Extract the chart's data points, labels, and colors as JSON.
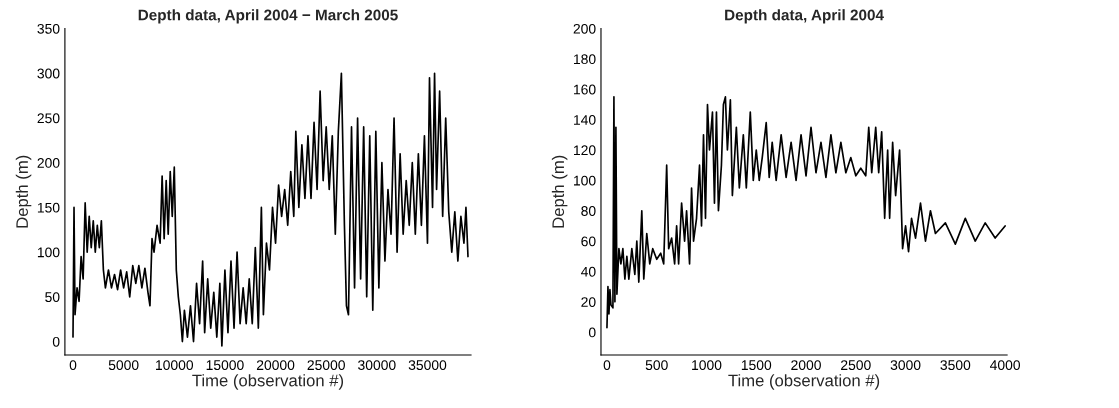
{
  "chart_data": [
    {
      "type": "line",
      "title": "Depth data, April 2004 − March 2005",
      "xlabel": "Time (observation #)",
      "ylabel": "Depth (m)",
      "xlim": [
        -800,
        39300
      ],
      "ylim": [
        -15,
        350
      ],
      "xticks": [
        0,
        5000,
        10000,
        15000,
        20000,
        25000,
        30000,
        35000
      ],
      "yticks": [
        0,
        50,
        100,
        150,
        200,
        250,
        300,
        350
      ],
      "grid": false,
      "legend": false,
      "series": [
        {
          "color": "#000000",
          "x": [
            0,
            100,
            200,
            400,
            600,
            800,
            1000,
            1200,
            1400,
            1600,
            1800,
            2000,
            2200,
            2400,
            2600,
            2800,
            3000,
            3200,
            3500,
            3800,
            4100,
            4400,
            4700,
            5000,
            5300,
            5600,
            5900,
            6200,
            6500,
            6800,
            7100,
            7400,
            7600,
            7800,
            8000,
            8300,
            8600,
            8800,
            9000,
            9200,
            9400,
            9600,
            9800,
            10000,
            10200,
            10400,
            10600,
            10800,
            11000,
            11300,
            11600,
            11900,
            12200,
            12500,
            12800,
            13000,
            13300,
            13600,
            13900,
            14200,
            14500,
            14700,
            15000,
            15300,
            15600,
            15900,
            16200,
            16500,
            16800,
            17100,
            17400,
            17700,
            18000,
            18300,
            18600,
            18800,
            19100,
            19400,
            19700,
            20000,
            20300,
            20600,
            20900,
            21200,
            21500,
            21800,
            22000,
            22300,
            22600,
            22900,
            23200,
            23500,
            23800,
            24100,
            24400,
            24700,
            25000,
            25300,
            25600,
            25900,
            26200,
            26500,
            26800,
            27000,
            27200,
            27500,
            27800,
            28100,
            28400,
            28700,
            29000,
            29300,
            29600,
            29900,
            30200,
            30500,
            30800,
            31100,
            31400,
            31700,
            32000,
            32300,
            32600,
            32900,
            33200,
            33500,
            33800,
            34100,
            34400,
            34700,
            35000,
            35200,
            35500,
            35700,
            35900,
            36200,
            36500,
            36800,
            37100,
            37400,
            37700,
            38000,
            38300,
            38600,
            38800,
            39000
          ],
          "values": [
            5,
            150,
            30,
            60,
            45,
            95,
            70,
            155,
            100,
            140,
            105,
            135,
            100,
            130,
            105,
            135,
            80,
            60,
            80,
            60,
            75,
            58,
            80,
            60,
            78,
            50,
            85,
            65,
            85,
            60,
            82,
            55,
            40,
            115,
            100,
            130,
            110,
            185,
            115,
            180,
            120,
            190,
            140,
            195,
            80,
            50,
            30,
            0,
            35,
            5,
            40,
            0,
            65,
            20,
            90,
            10,
            70,
            15,
            55,
            5,
            65,
            -5,
            80,
            10,
            90,
            15,
            100,
            20,
            60,
            20,
            70,
            20,
            105,
            15,
            150,
            30,
            110,
            80,
            150,
            110,
            175,
            140,
            170,
            130,
            190,
            140,
            235,
            150,
            220,
            160,
            230,
            160,
            245,
            170,
            280,
            180,
            240,
            170,
            230,
            120,
            235,
            300,
            130,
            40,
            30,
            240,
            60,
            250,
            70,
            240,
            50,
            230,
            35,
            235,
            60,
            200,
            90,
            170,
            120,
            250,
            100,
            210,
            120,
            180,
            130,
            200,
            120,
            210,
            130,
            230,
            110,
            295,
            150,
            300,
            170,
            280,
            140,
            250,
            145,
            100,
            145,
            90,
            140,
            110,
            150,
            95
          ]
        }
      ]
    },
    {
      "type": "line",
      "title": "Depth data, April 2004",
      "xlabel": "Time (observation #)",
      "ylabel": "Depth (m)",
      "xlim": [
        -60,
        4020
      ],
      "ylim": [
        -15,
        200
      ],
      "xticks": [
        0,
        500,
        1000,
        1500,
        2000,
        2500,
        3000,
        3500,
        4000
      ],
      "yticks": [
        0,
        20,
        40,
        60,
        80,
        100,
        120,
        140,
        160,
        180,
        200
      ],
      "grid": false,
      "legend": false,
      "series": [
        {
          "color": "#000000",
          "x": [
            0,
            10,
            20,
            30,
            40,
            60,
            70,
            80,
            90,
            100,
            120,
            140,
            160,
            180,
            200,
            220,
            250,
            280,
            300,
            320,
            350,
            370,
            400,
            430,
            460,
            500,
            540,
            570,
            600,
            620,
            650,
            680,
            700,
            720,
            750,
            780,
            800,
            830,
            850,
            870,
            900,
            930,
            950,
            970,
            990,
            1010,
            1030,
            1060,
            1080,
            1100,
            1120,
            1150,
            1170,
            1190,
            1210,
            1240,
            1260,
            1300,
            1330,
            1370,
            1400,
            1440,
            1470,
            1500,
            1530,
            1560,
            1600,
            1630,
            1660,
            1700,
            1750,
            1800,
            1850,
            1900,
            1950,
            2000,
            2050,
            2100,
            2150,
            2200,
            2250,
            2300,
            2350,
            2400,
            2450,
            2500,
            2550,
            2600,
            2630,
            2660,
            2700,
            2730,
            2760,
            2790,
            2820,
            2840,
            2870,
            2900,
            2940,
            2970,
            3000,
            3030,
            3060,
            3100,
            3150,
            3200,
            3250,
            3300,
            3400,
            3500,
            3600,
            3700,
            3800,
            3900,
            4000
          ],
          "values": [
            3,
            30,
            12,
            28,
            18,
            16,
            155,
            20,
            135,
            25,
            55,
            45,
            55,
            35,
            50,
            35,
            55,
            38,
            60,
            33,
            80,
            35,
            65,
            45,
            55,
            48,
            52,
            45,
            110,
            55,
            62,
            45,
            70,
            45,
            85,
            60,
            80,
            45,
            95,
            60,
            75,
            110,
            70,
            130,
            75,
            150,
            120,
            145,
            85,
            145,
            80,
            110,
            150,
            155,
            120,
            153,
            90,
            135,
            95,
            130,
            95,
            145,
            100,
            120,
            100,
            115,
            138,
            102,
            125,
            100,
            130,
            102,
            125,
            100,
            130,
            103,
            135,
            105,
            125,
            102,
            130,
            105,
            125,
            105,
            115,
            103,
            108,
            103,
            135,
            105,
            135,
            105,
            132,
            75,
            120,
            75,
            125,
            90,
            120,
            55,
            70,
            53,
            75,
            62,
            85,
            60,
            80,
            65,
            72,
            58,
            75,
            60,
            72,
            62,
            70
          ]
        }
      ]
    }
  ]
}
